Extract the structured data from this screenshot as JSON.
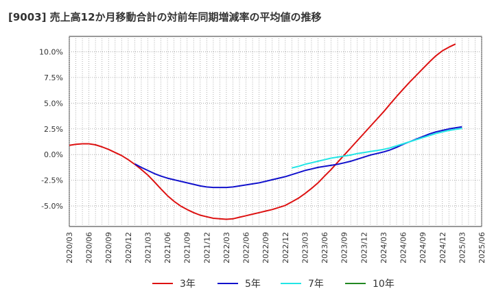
{
  "title": "[9003]  売上高12か月移動合計の対前年同期増減率の平均値の推移",
  "chart_data": {
    "type": "line",
    "title": "[9003]  売上高12か月移動合計の対前年同期増減率の平均値の推移",
    "xlabel": "",
    "ylabel": "",
    "ylim": [
      -7.0,
      11.5
    ],
    "xlim": [
      "2020-03",
      "2025-06"
    ],
    "x_ticks": [
      "2020/03",
      "2020/06",
      "2020/09",
      "2020/12",
      "2021/03",
      "2021/06",
      "2021/09",
      "2021/12",
      "2022/03",
      "2022/06",
      "2022/09",
      "2022/12",
      "2023/03",
      "2023/06",
      "2023/09",
      "2023/12",
      "2024/03",
      "2024/06",
      "2024/09",
      "2024/12",
      "2025/03",
      "2025/06"
    ],
    "y_ticks": [
      -5.0,
      -2.5,
      0.0,
      2.5,
      5.0,
      7.5,
      10.0
    ],
    "y_tick_labels": [
      "-5.0%",
      "-2.5%",
      "0.0%",
      "2.5%",
      "5.0%",
      "7.5%",
      "10.0%"
    ],
    "grid": true,
    "legend_position": "bottom",
    "series": [
      {
        "name": "3年",
        "color": "#dd1111",
        "points": [
          [
            "2020-03",
            0.9
          ],
          [
            "2020-04",
            1.0
          ],
          [
            "2020-05",
            1.05
          ],
          [
            "2020-06",
            1.05
          ],
          [
            "2020-07",
            0.95
          ],
          [
            "2020-08",
            0.75
          ],
          [
            "2020-09",
            0.5
          ],
          [
            "2020-10",
            0.2
          ],
          [
            "2020-11",
            -0.1
          ],
          [
            "2020-12",
            -0.5
          ],
          [
            "2021-01",
            -0.95
          ],
          [
            "2021-02",
            -1.45
          ],
          [
            "2021-03",
            -2.0
          ],
          [
            "2021-04",
            -2.65
          ],
          [
            "2021-05",
            -3.35
          ],
          [
            "2021-06",
            -4.0
          ],
          [
            "2021-07",
            -4.55
          ],
          [
            "2021-08",
            -5.0
          ],
          [
            "2021-09",
            -5.35
          ],
          [
            "2021-10",
            -5.65
          ],
          [
            "2021-11",
            -5.9
          ],
          [
            "2021-12",
            -6.05
          ],
          [
            "2022-01",
            -6.2
          ],
          [
            "2022-02",
            -6.25
          ],
          [
            "2022-03",
            -6.3
          ],
          [
            "2022-04",
            -6.25
          ],
          [
            "2022-05",
            -6.1
          ],
          [
            "2022-06",
            -5.95
          ],
          [
            "2022-07",
            -5.8
          ],
          [
            "2022-08",
            -5.65
          ],
          [
            "2022-09",
            -5.5
          ],
          [
            "2022-10",
            -5.35
          ],
          [
            "2022-11",
            -5.15
          ],
          [
            "2022-12",
            -4.95
          ],
          [
            "2023-01",
            -4.6
          ],
          [
            "2023-02",
            -4.25
          ],
          [
            "2023-03",
            -3.8
          ],
          [
            "2023-04",
            -3.3
          ],
          [
            "2023-05",
            -2.75
          ],
          [
            "2023-06",
            -2.1
          ],
          [
            "2023-07",
            -1.45
          ],
          [
            "2023-08",
            -0.75
          ],
          [
            "2023-09",
            -0.05
          ],
          [
            "2023-10",
            0.65
          ],
          [
            "2023-11",
            1.35
          ],
          [
            "2023-12",
            2.05
          ],
          [
            "2024-01",
            2.75
          ],
          [
            "2024-02",
            3.45
          ],
          [
            "2024-03",
            4.15
          ],
          [
            "2024-04",
            4.9
          ],
          [
            "2024-05",
            5.65
          ],
          [
            "2024-06",
            6.35
          ],
          [
            "2024-07",
            7.05
          ],
          [
            "2024-08",
            7.7
          ],
          [
            "2024-09",
            8.35
          ],
          [
            "2024-10",
            9.0
          ],
          [
            "2024-11",
            9.6
          ],
          [
            "2024-12",
            10.1
          ],
          [
            "2025-01",
            10.45
          ],
          [
            "2025-02",
            10.75
          ]
        ]
      },
      {
        "name": "5年",
        "color": "#1111cc",
        "points": [
          [
            "2021-01",
            -0.9
          ],
          [
            "2021-02",
            -1.25
          ],
          [
            "2021-03",
            -1.55
          ],
          [
            "2021-04",
            -1.85
          ],
          [
            "2021-05",
            -2.1
          ],
          [
            "2021-06",
            -2.3
          ],
          [
            "2021-07",
            -2.45
          ],
          [
            "2021-08",
            -2.6
          ],
          [
            "2021-09",
            -2.75
          ],
          [
            "2021-10",
            -2.9
          ],
          [
            "2021-11",
            -3.05
          ],
          [
            "2021-12",
            -3.15
          ],
          [
            "2022-01",
            -3.2
          ],
          [
            "2022-02",
            -3.2
          ],
          [
            "2022-03",
            -3.2
          ],
          [
            "2022-04",
            -3.15
          ],
          [
            "2022-05",
            -3.05
          ],
          [
            "2022-06",
            -2.95
          ],
          [
            "2022-07",
            -2.85
          ],
          [
            "2022-08",
            -2.75
          ],
          [
            "2022-09",
            -2.6
          ],
          [
            "2022-10",
            -2.45
          ],
          [
            "2022-11",
            -2.3
          ],
          [
            "2022-12",
            -2.15
          ],
          [
            "2023-01",
            -1.95
          ],
          [
            "2023-02",
            -1.75
          ],
          [
            "2023-03",
            -1.55
          ],
          [
            "2023-04",
            -1.4
          ],
          [
            "2023-05",
            -1.25
          ],
          [
            "2023-06",
            -1.15
          ],
          [
            "2023-07",
            -1.05
          ],
          [
            "2023-08",
            -0.95
          ],
          [
            "2023-09",
            -0.8
          ],
          [
            "2023-10",
            -0.65
          ],
          [
            "2023-11",
            -0.45
          ],
          [
            "2023-12",
            -0.25
          ],
          [
            "2024-01",
            -0.05
          ],
          [
            "2024-02",
            0.1
          ],
          [
            "2024-03",
            0.25
          ],
          [
            "2024-04",
            0.45
          ],
          [
            "2024-05",
            0.7
          ],
          [
            "2024-06",
            1.0
          ],
          [
            "2024-07",
            1.25
          ],
          [
            "2024-08",
            1.5
          ],
          [
            "2024-09",
            1.75
          ],
          [
            "2024-10",
            2.0
          ],
          [
            "2024-11",
            2.2
          ],
          [
            "2024-12",
            2.35
          ],
          [
            "2025-01",
            2.5
          ],
          [
            "2025-02",
            2.6
          ],
          [
            "2025-03",
            2.7
          ]
        ]
      },
      {
        "name": "7年",
        "color": "#22e5e5",
        "points": [
          [
            "2023-01",
            -1.3
          ],
          [
            "2023-02",
            -1.15
          ],
          [
            "2023-03",
            -0.95
          ],
          [
            "2023-04",
            -0.8
          ],
          [
            "2023-05",
            -0.65
          ],
          [
            "2023-06",
            -0.5
          ],
          [
            "2023-07",
            -0.35
          ],
          [
            "2023-08",
            -0.25
          ],
          [
            "2023-09",
            -0.15
          ],
          [
            "2023-10",
            -0.05
          ],
          [
            "2023-11",
            0.1
          ],
          [
            "2023-12",
            0.2
          ],
          [
            "2024-01",
            0.3
          ],
          [
            "2024-02",
            0.4
          ],
          [
            "2024-03",
            0.5
          ],
          [
            "2024-04",
            0.65
          ],
          [
            "2024-05",
            0.85
          ],
          [
            "2024-06",
            1.05
          ],
          [
            "2024-07",
            1.25
          ],
          [
            "2024-08",
            1.45
          ],
          [
            "2024-09",
            1.65
          ],
          [
            "2024-10",
            1.85
          ],
          [
            "2024-11",
            2.05
          ],
          [
            "2024-12",
            2.2
          ],
          [
            "2025-01",
            2.35
          ],
          [
            "2025-02",
            2.45
          ],
          [
            "2025-03",
            2.55
          ]
        ]
      },
      {
        "name": "10年",
        "color": "#228822",
        "points": []
      }
    ]
  }
}
